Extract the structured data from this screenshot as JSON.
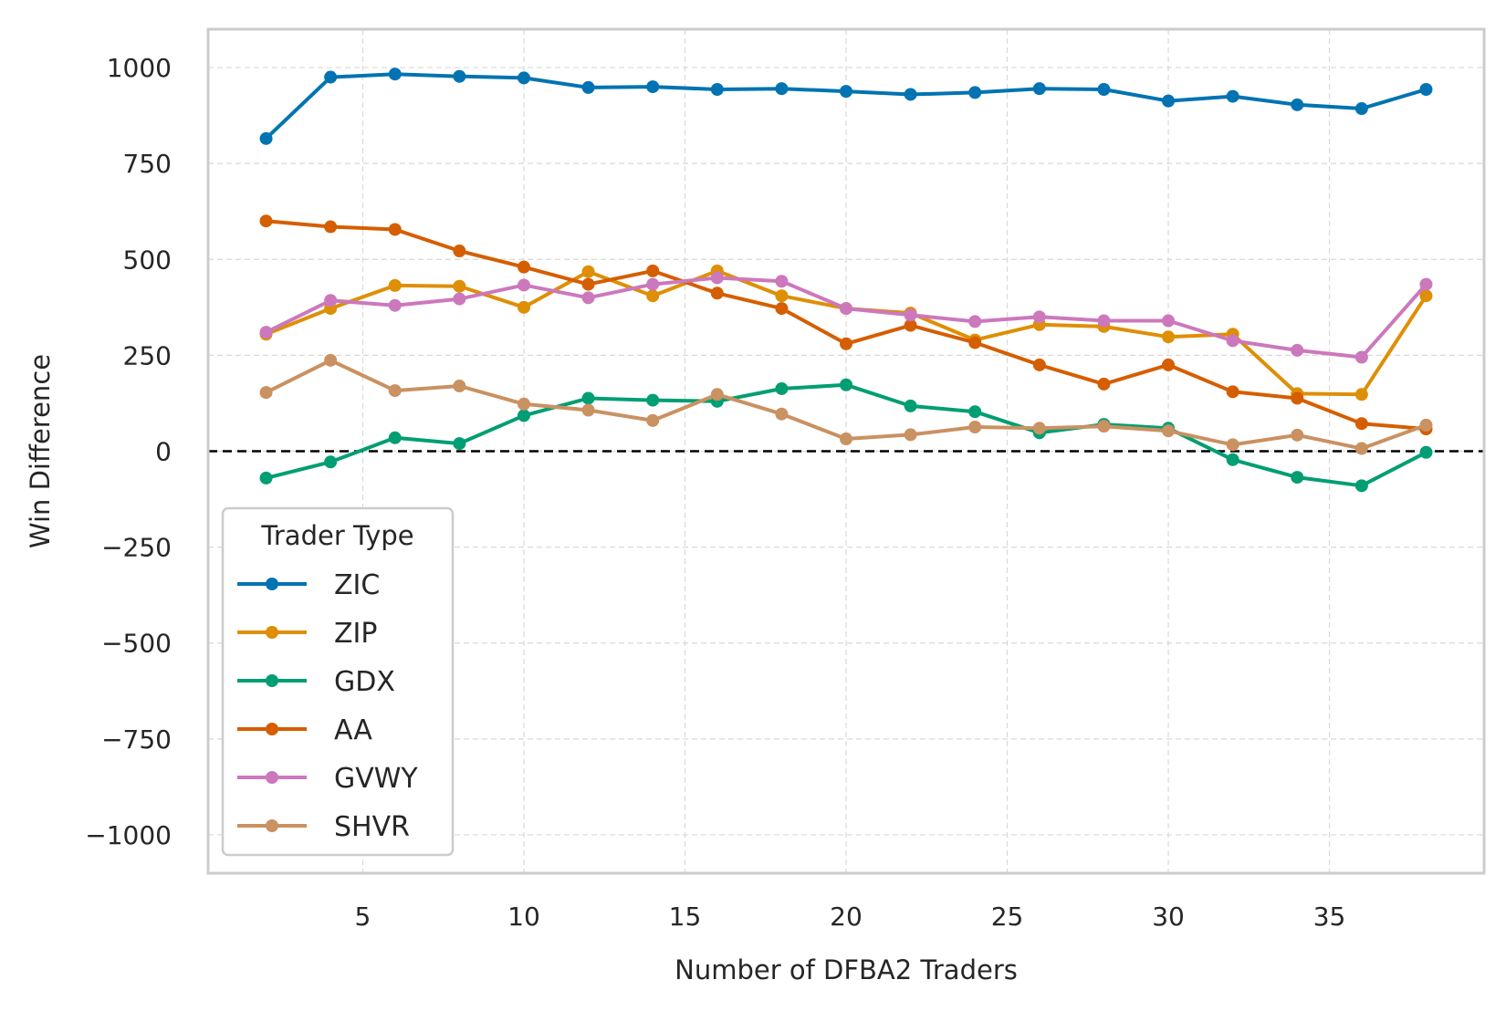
{
  "chart_data": {
    "type": "line",
    "xlabel": "Number of DFBA2 Traders",
    "ylabel": "Win Difference",
    "xlim": [
      0.2,
      39.8
    ],
    "ylim": [
      -1100,
      1100
    ],
    "xticks": [
      5,
      10,
      15,
      20,
      25,
      30,
      35
    ],
    "yticks": [
      -1000,
      -750,
      -500,
      -250,
      0,
      250,
      500,
      750,
      1000
    ],
    "ytick_labels": [
      "−1000",
      "−750",
      "−500",
      "−250",
      "0",
      "250",
      "500",
      "750",
      "1000"
    ],
    "grid": true,
    "reference_line": {
      "y": 0,
      "style": "dashed",
      "color": "#000000"
    },
    "legend": {
      "title": "Trader Type",
      "placement": "lower-left"
    },
    "x": [
      2,
      4,
      6,
      8,
      10,
      12,
      14,
      16,
      18,
      20,
      22,
      24,
      26,
      28,
      30,
      32,
      34,
      36,
      38
    ],
    "series": [
      {
        "name": "ZIC",
        "color": "#0173b2",
        "values": [
          815,
          975,
          983,
          977,
          973,
          948,
          950,
          943,
          945,
          938,
          930,
          935,
          945,
          943,
          913,
          925,
          903,
          893,
          943
        ]
      },
      {
        "name": "ZIP",
        "color": "#de8f05",
        "values": [
          305,
          372,
          432,
          430,
          375,
          468,
          405,
          470,
          405,
          372,
          360,
          290,
          330,
          325,
          298,
          305,
          150,
          148,
          405
        ]
      },
      {
        "name": "GDX",
        "color": "#029e73",
        "values": [
          -70,
          -28,
          35,
          20,
          93,
          138,
          133,
          130,
          163,
          173,
          118,
          103,
          48,
          70,
          60,
          -22,
          -68,
          -90,
          -3
        ]
      },
      {
        "name": "AA",
        "color": "#d55e00",
        "values": [
          600,
          585,
          578,
          522,
          480,
          435,
          470,
          412,
          372,
          280,
          328,
          283,
          225,
          175,
          225,
          155,
          138,
          72,
          58
        ]
      },
      {
        "name": "GVWY",
        "color": "#cc78bc",
        "values": [
          310,
          393,
          380,
          397,
          433,
          400,
          435,
          452,
          443,
          372,
          355,
          338,
          350,
          340,
          340,
          288,
          263,
          245,
          435
        ]
      },
      {
        "name": "SHVR",
        "color": "#ca9161",
        "values": [
          153,
          237,
          158,
          170,
          123,
          107,
          80,
          148,
          97,
          32,
          43,
          63,
          60,
          65,
          53,
          17,
          42,
          7,
          68
        ]
      }
    ]
  }
}
